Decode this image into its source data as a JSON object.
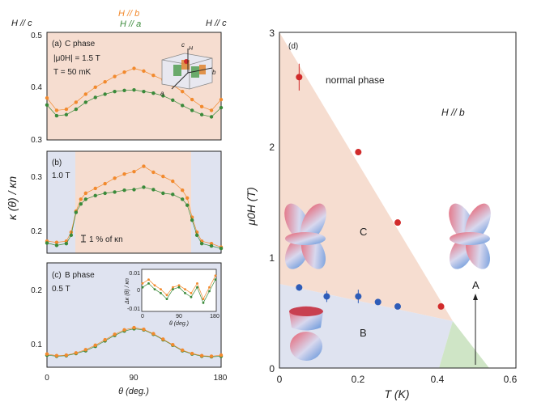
{
  "colors": {
    "orange": "#f28a2e",
    "green": "#3a8a3a",
    "red": "#d12b2b",
    "blue": "#2e5cb8",
    "c_phase_fill": "#f6ddd0",
    "b_phase_fill": "#dfe3f0",
    "green_region": "#cfe5c6"
  },
  "header": {
    "h_c_left": "H // c",
    "h_b": "H // b",
    "h_a": "H // a",
    "h_c_right": "H // c"
  },
  "left_axes": {
    "ylabel": "κ (θ) / κn",
    "xlabel": "θ (deg.)",
    "xticks": [
      "0",
      "90",
      "180"
    ]
  },
  "panel_a": {
    "letter_label": "(a)",
    "phase_label": "C phase",
    "field_label": "|μ0H| = 1.5 T",
    "temp_label": "T = 50 mK",
    "yticks": [
      "0.3",
      "0.4",
      "0.5"
    ],
    "crystal_labels": [
      "c",
      "a",
      "b",
      "H"
    ]
  },
  "panel_b": {
    "letter_label": "(b)",
    "field_label": "1.0 T",
    "yticks": [
      "0.2",
      "0.3"
    ],
    "errorbar_label": "1 % of κn"
  },
  "panel_c": {
    "letter_label": "(c)",
    "phase_label": "B phase",
    "field_label": "0.5 T",
    "yticks": [
      "0.1",
      "0.2"
    ],
    "inset": {
      "ylabel": "Δκ (θ) / κn",
      "xlabel": "θ (deg.)",
      "yticks": [
        "0.01",
        "0",
        "-0.01"
      ],
      "xticks": [
        "0",
        "90",
        "180"
      ]
    }
  },
  "panel_d": {
    "letter_label": "(d)",
    "normal_label": "normal phase",
    "field_dir": "H // b",
    "c_label": "C",
    "b_label": "B",
    "a_label": "A",
    "xlabel": "T (K)",
    "ylabel": "μ0H (T)",
    "xticks": [
      "0",
      "0.2",
      "0.4",
      "0.6"
    ],
    "yticks": [
      "0",
      "1",
      "2",
      "3"
    ]
  },
  "chart_data": [
    {
      "type": "scatter",
      "panel": "a",
      "xlim": [
        0,
        180
      ],
      "ylim": [
        0.3,
        0.5
      ],
      "series": [
        {
          "color": "orange",
          "x": [
            0,
            10,
            20,
            30,
            40,
            50,
            60,
            70,
            80,
            90,
            100,
            110,
            120,
            130,
            140,
            150,
            160,
            170,
            180
          ],
          "y": [
            0.378,
            0.355,
            0.357,
            0.37,
            0.385,
            0.398,
            0.408,
            0.418,
            0.426,
            0.433,
            0.428,
            0.42,
            0.412,
            0.402,
            0.39,
            0.375,
            0.362,
            0.355,
            0.375
          ]
        },
        {
          "color": "green",
          "x": [
            0,
            10,
            20,
            30,
            40,
            50,
            60,
            70,
            80,
            90,
            100,
            110,
            120,
            130,
            140,
            150,
            160,
            170,
            180
          ],
          "y": [
            0.365,
            0.345,
            0.347,
            0.357,
            0.37,
            0.379,
            0.385,
            0.39,
            0.392,
            0.393,
            0.39,
            0.387,
            0.382,
            0.374,
            0.364,
            0.355,
            0.347,
            0.343,
            0.36
          ]
        }
      ]
    },
    {
      "type": "scatter",
      "panel": "b",
      "xlim": [
        0,
        180
      ],
      "ylim": [
        0.17,
        0.34
      ],
      "series": [
        {
          "color": "orange",
          "x": [
            0,
            10,
            20,
            25,
            30,
            35,
            40,
            50,
            60,
            70,
            80,
            90,
            100,
            110,
            120,
            130,
            140,
            145,
            150,
            155,
            160,
            170,
            180
          ],
          "y": [
            0.19,
            0.188,
            0.19,
            0.205,
            0.24,
            0.26,
            0.27,
            0.278,
            0.286,
            0.295,
            0.302,
            0.306,
            0.315,
            0.305,
            0.298,
            0.29,
            0.275,
            0.262,
            0.23,
            0.205,
            0.19,
            0.186,
            0.18
          ]
        },
        {
          "color": "green",
          "x": [
            0,
            10,
            20,
            25,
            30,
            35,
            40,
            50,
            60,
            70,
            80,
            90,
            100,
            110,
            120,
            130,
            140,
            145,
            150,
            155,
            160,
            170,
            180
          ],
          "y": [
            0.187,
            0.183,
            0.186,
            0.2,
            0.238,
            0.252,
            0.26,
            0.266,
            0.27,
            0.272,
            0.275,
            0.276,
            0.28,
            0.276,
            0.27,
            0.268,
            0.26,
            0.25,
            0.225,
            0.2,
            0.186,
            0.182,
            0.178
          ]
        }
      ]
    },
    {
      "type": "scatter",
      "panel": "c",
      "xlim": [
        0,
        180
      ],
      "ylim": [
        0.07,
        0.26
      ],
      "series": [
        {
          "color": "green",
          "x": [
            0,
            10,
            20,
            30,
            40,
            50,
            60,
            70,
            80,
            90,
            100,
            110,
            120,
            130,
            140,
            150,
            160,
            170,
            180
          ],
          "y": [
            0.092,
            0.09,
            0.091,
            0.095,
            0.1,
            0.108,
            0.118,
            0.128,
            0.136,
            0.14,
            0.138,
            0.13,
            0.12,
            0.11,
            0.1,
            0.094,
            0.09,
            0.089,
            0.09
          ]
        },
        {
          "color": "orange",
          "x": [
            0,
            10,
            20,
            30,
            40,
            50,
            60,
            70,
            80,
            90,
            100,
            110,
            120,
            130,
            140,
            150,
            160,
            170,
            180
          ],
          "y": [
            0.094,
            0.091,
            0.092,
            0.096,
            0.102,
            0.11,
            0.12,
            0.13,
            0.138,
            0.142,
            0.139,
            0.131,
            0.121,
            0.111,
            0.101,
            0.095,
            0.091,
            0.09,
            0.092
          ]
        }
      ]
    },
    {
      "type": "scatter",
      "panel": "c-inset",
      "xlim": [
        0,
        180
      ],
      "ylim": [
        -0.01,
        0.01
      ],
      "series": [
        {
          "color": "orange",
          "x": [
            0,
            15,
            30,
            45,
            60,
            75,
            90,
            105,
            120,
            135,
            150,
            165,
            180
          ],
          "y": [
            0.004,
            0.006,
            0.003,
            0.001,
            -0.002,
            0.002,
            0.003,
            0.001,
            -0.001,
            0.004,
            -0.004,
            0.002,
            0.008
          ]
        },
        {
          "color": "green",
          "x": [
            0,
            15,
            30,
            45,
            60,
            75,
            90,
            105,
            120,
            135,
            150,
            165,
            180
          ],
          "y": [
            0.002,
            0.004,
            0.001,
            -0.001,
            -0.004,
            0.001,
            0.002,
            -0.001,
            -0.003,
            0.002,
            -0.006,
            0.0,
            0.006
          ]
        }
      ]
    },
    {
      "type": "scatter",
      "panel": "d",
      "xlim": [
        0,
        0.6
      ],
      "ylim": [
        0,
        3
      ],
      "series": [
        {
          "color": "red",
          "points": [
            [
              0.05,
              2.6,
              0.12
            ],
            [
              0.2,
              1.93,
              0
            ],
            [
              0.3,
              1.3,
              0
            ],
            [
              0.41,
              0.55,
              0
            ]
          ]
        },
        {
          "color": "blue",
          "points": [
            [
              0.05,
              0.72,
              0.03
            ],
            [
              0.12,
              0.64,
              0.05
            ],
            [
              0.2,
              0.64,
              0.06
            ],
            [
              0.25,
              0.59,
              0
            ],
            [
              0.3,
              0.55,
              0
            ]
          ]
        }
      ]
    }
  ]
}
